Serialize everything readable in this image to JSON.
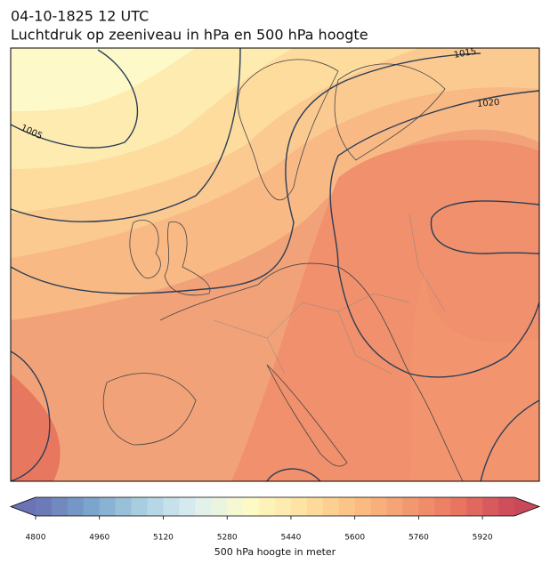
{
  "title": "04-10-1825 12 UTC",
  "subtitle": "Luchtdruk op zeeniveau in hPa en 500 hPa hoogte",
  "isobar_labels": [
    "1005",
    "1015",
    "1020"
  ],
  "colorbar": {
    "label": "500 hPa hoogte in meter",
    "lim": [
      4800,
      6000
    ],
    "step": 40,
    "ticks": [
      4800,
      4960,
      5120,
      5280,
      5440,
      5600,
      5760,
      5920
    ],
    "colors": [
      "#6b73b5",
      "#7aa3cc",
      "#a9cfe0",
      "#ddeff2",
      "#fdfbc6",
      "#fde3a2",
      "#fcc083",
      "#f39a70",
      "#e8735f",
      "#c9485a"
    ]
  }
}
